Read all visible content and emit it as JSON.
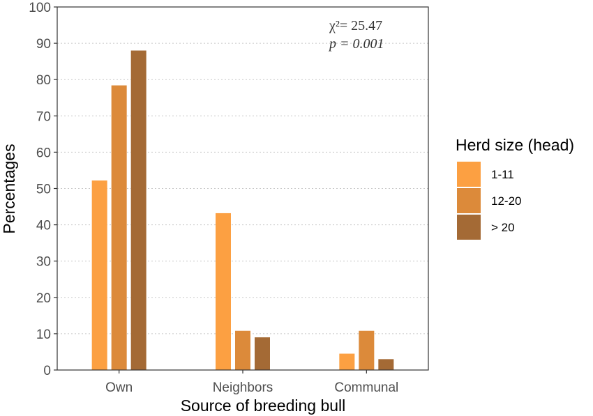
{
  "chart_data": {
    "type": "bar",
    "xlabel": "Source of breeding bull",
    "ylabel": "Percentages",
    "categories": [
      "Own",
      "Neighbors",
      "Communal"
    ],
    "series": [
      {
        "name": "1-11",
        "color": "#fca042",
        "values": [
          52.2,
          43.2,
          4.5
        ]
      },
      {
        "name": "12-20",
        "color": "#dc8a3a",
        "values": [
          78.4,
          10.8,
          10.8
        ]
      },
      {
        "name": "> 20",
        "color": "#a46a35",
        "values": [
          88.0,
          9.0,
          3.0
        ]
      }
    ],
    "ylim": [
      0,
      100
    ],
    "yticks": [
      0,
      10,
      20,
      30,
      40,
      50,
      60,
      70,
      80,
      90,
      100
    ],
    "grid": "horizontal dotted",
    "legend": {
      "title": "Herd size (head)",
      "placement": "right"
    },
    "annotations": {
      "chi_label": "χ²= 25.47",
      "p_label": "p = 0.001"
    }
  }
}
